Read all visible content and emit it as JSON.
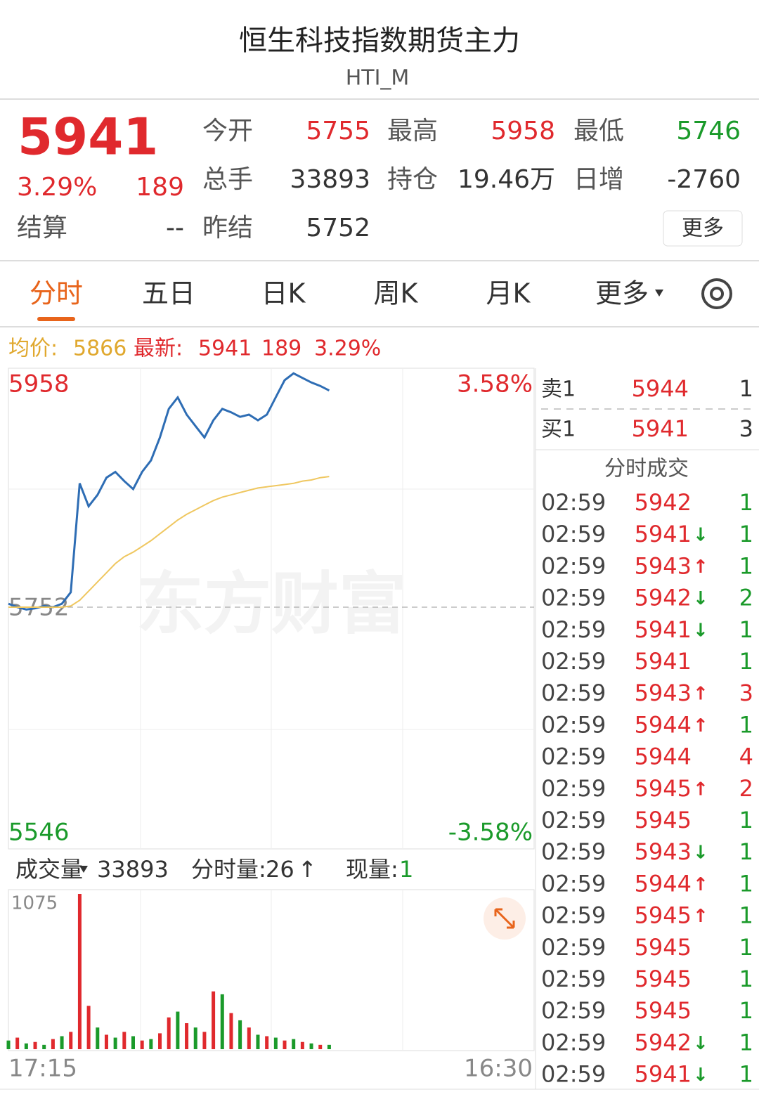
{
  "header": {
    "title": "恒生科技指数期货主力",
    "code": "HTI_M"
  },
  "quote": {
    "price": 5941,
    "change_pct": "3.29%",
    "change": 189,
    "settle_label": "结算",
    "settle": "--",
    "fields": [
      {
        "label": "今开",
        "value": 5755,
        "color": "#e0292d"
      },
      {
        "label": "最高",
        "value": 5958,
        "color": "#e0292d"
      },
      {
        "label": "最低",
        "value": 5746,
        "color": "#1a9a2a"
      },
      {
        "label": "总手",
        "value": 33893
      },
      {
        "label": "持仓",
        "value": "19.46万"
      },
      {
        "label": "日增",
        "value": -2760
      },
      {
        "label": "昨结",
        "value": 5752
      }
    ],
    "more": "更多"
  },
  "tabs": [
    "分时",
    "五日",
    "日K",
    "周K",
    "月K",
    "更多"
  ],
  "info": {
    "avg_label": "均价:",
    "avg": 5866,
    "last_label": "最新:",
    "last": 5941,
    "change": 189,
    "change_pct": "3.29%"
  },
  "order_book": [
    {
      "side": "卖1",
      "price": 5944,
      "volume": 1
    },
    {
      "side": "买1",
      "price": 5941,
      "volume": 3
    }
  ],
  "trades_title": "分时成交",
  "trades": [
    {
      "time": "02:59",
      "price": 5942,
      "volume": 1,
      "color": "#1a9a2a"
    },
    {
      "time": "02:59",
      "price": 5941,
      "arrow": "↓",
      "volume": 1,
      "color": "#1a9a2a"
    },
    {
      "time": "02:59",
      "price": 5943,
      "arrow": "↑",
      "volume": 1,
      "color": "#1a9a2a"
    },
    {
      "time": "02:59",
      "price": 5942,
      "arrow": "↓",
      "volume": 2,
      "color": "#1a9a2a"
    },
    {
      "time": "02:59",
      "price": 5941,
      "arrow": "↓",
      "volume": 1,
      "color": "#1a9a2a"
    },
    {
      "time": "02:59",
      "price": 5941,
      "volume": 1,
      "color": "#1a9a2a"
    },
    {
      "time": "02:59",
      "price": 5943,
      "arrow": "↑",
      "volume": 3,
      "color": "#e0292d"
    },
    {
      "time": "02:59",
      "price": 5944,
      "arrow": "↑",
      "volume": 1,
      "color": "#1a9a2a"
    },
    {
      "time": "02:59",
      "price": 5944,
      "volume": 4,
      "color": "#e0292d"
    },
    {
      "time": "02:59",
      "price": 5945,
      "arrow": "↑",
      "volume": 2,
      "color": "#e0292d"
    },
    {
      "time": "02:59",
      "price": 5945,
      "volume": 1,
      "color": "#1a9a2a"
    },
    {
      "time": "02:59",
      "price": 5943,
      "arrow": "↓",
      "volume": 1,
      "color": "#1a9a2a"
    },
    {
      "time": "02:59",
      "price": 5944,
      "arrow": "↑",
      "volume": 1,
      "color": "#1a9a2a"
    },
    {
      "time": "02:59",
      "price": 5945,
      "arrow": "↑",
      "volume": 1,
      "color": "#1a9a2a"
    },
    {
      "time": "02:59",
      "price": 5945,
      "volume": 1,
      "color": "#1a9a2a"
    },
    {
      "time": "02:59",
      "price": 5945,
      "volume": 1,
      "color": "#1a9a2a"
    },
    {
      "time": "02:59",
      "price": 5945,
      "volume": 1,
      "color": "#1a9a2a"
    },
    {
      "time": "02:59",
      "price": 5942,
      "arrow": "↓",
      "volume": 1,
      "color": "#1a9a2a"
    },
    {
      "time": "02:59",
      "price": 5941,
      "arrow": "↓",
      "volume": 1,
      "color": "#1a9a2a"
    }
  ],
  "volume_bar": {
    "label": "成交量",
    "total": 33893,
    "tick_label": "分时量:",
    "tick": 26,
    "arrow": "↑",
    "now_label": "现量:",
    "now": 1
  },
  "watermark": "东方财富",
  "chart_data": {
    "type": "line",
    "categories": [
      "17:15",
      null,
      null,
      null,
      null,
      null,
      null,
      null,
      null,
      null,
      null,
      null,
      null,
      null,
      null,
      null,
      null,
      null,
      null,
      null,
      null,
      null,
      null,
      null,
      null,
      null,
      null,
      null,
      null,
      null,
      null,
      null,
      null,
      null,
      null,
      null,
      null,
      null,
      null,
      null,
      null,
      null,
      null,
      null,
      null,
      null,
      null,
      null,
      null,
      null,
      null,
      null,
      null,
      null,
      null,
      null,
      null,
      null,
      null,
      "16:30"
    ],
    "series": [
      {
        "color": "#2e6db4",
        "values": [
          5755,
          5752,
          5750,
          5751,
          5753,
          5752,
          5755,
          5765,
          5860,
          5840,
          5850,
          5865,
          5870,
          5862,
          5855,
          5870,
          5880,
          5900,
          5925,
          5935,
          5920,
          5910,
          5900,
          5915,
          5925,
          5922,
          5918,
          5920,
          5915,
          5920,
          5935,
          5950,
          5956,
          5952,
          5948,
          5945,
          5941,
          null,
          null,
          null,
          null,
          null,
          null,
          null,
          null,
          null,
          null,
          null,
          null,
          null,
          null,
          null,
          null,
          null,
          null,
          null,
          null,
          null,
          null,
          null
        ]
      },
      {
        "color": "#efc760",
        "values": [
          5752,
          5752,
          5752,
          5752,
          5752,
          5752,
          5752,
          5753,
          5758,
          5766,
          5774,
          5782,
          5790,
          5796,
          5800,
          5805,
          5810,
          5816,
          5822,
          5828,
          5833,
          5837,
          5841,
          5845,
          5848,
          5850,
          5852,
          5854,
          5856,
          5857,
          5858,
          5859,
          5860,
          5862,
          5863,
          5865,
          5866,
          null,
          null,
          null,
          null,
          null,
          null,
          null,
          null,
          null,
          null,
          null,
          null,
          null,
          null,
          null,
          null,
          null,
          null,
          null,
          null,
          null,
          null,
          null
        ]
      }
    ],
    "ylim": [
      5546,
      5958
    ],
    "yticks": [
      5958,
      5752,
      5546
    ],
    "ytick_colors": [
      "#e0292d",
      "#888888",
      "#1a9a2a"
    ],
    "y2lim": [
      -3.58,
      3.58
    ],
    "y2ticks": [
      {
        "value": 3.58,
        "label": "3.58%"
      },
      {
        "value": -3.58,
        "label": "-3.58%"
      }
    ],
    "y2tick_colors": [
      "#e0292d",
      "#1a9a2a"
    ],
    "volume": {
      "type": "bar",
      "ylim": [
        0,
        1075
      ],
      "yticks": [
        1075
      ],
      "values": [
        60,
        80,
        40,
        50,
        30,
        70,
        90,
        120,
        1075,
        300,
        150,
        100,
        80,
        120,
        90,
        60,
        70,
        110,
        220,
        260,
        180,
        150,
        120,
        400,
        380,
        250,
        200,
        150,
        100,
        90,
        80,
        60,
        70,
        50,
        40,
        30,
        30
      ],
      "colors": [
        "#1a9a2a",
        "#e0292d",
        "#1a9a2a",
        "#e0292d",
        "#1a9a2a",
        "#e0292d",
        "#1a9a2a",
        "#e0292d",
        "#e0292d",
        "#e0292d",
        "#1a9a2a",
        "#e0292d",
        "#1a9a2a",
        "#e0292d",
        "#1a9a2a",
        "#e0292d",
        "#1a9a2a",
        "#e0292d",
        "#e0292d",
        "#1a9a2a",
        "#e0292d",
        "#1a9a2a",
        "#e0292d",
        "#e0292d",
        "#1a9a2a",
        "#e0292d",
        "#1a9a2a",
        "#e0292d",
        "#1a9a2a",
        "#e0292d",
        "#1a9a2a",
        "#e0292d",
        "#1a9a2a",
        "#e0292d",
        "#1a9a2a",
        "#e0292d",
        "#1a9a2a"
      ]
    }
  }
}
